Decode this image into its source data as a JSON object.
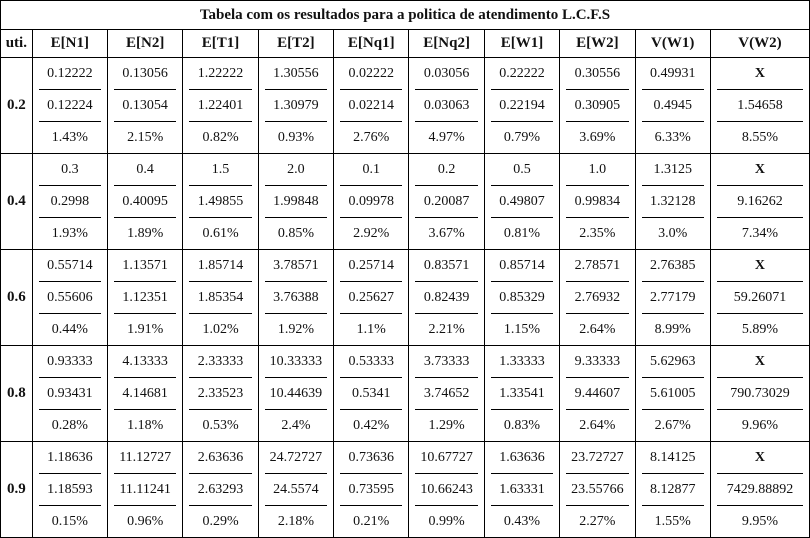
{
  "title": "Tabela com os resultados para a politica de atendimento L.C.F.S",
  "headers": [
    "uti.",
    "E[N1]",
    "E[N2]",
    "E[T1]",
    "E[T2]",
    "E[Nq1]",
    "E[Nq2]",
    "E[W1]",
    "E[W2]",
    "V(W1)",
    "V(W2)"
  ],
  "rows": [
    {
      "util": "0.2",
      "cells": [
        [
          "0.12222",
          "0.12224",
          "1.43%"
        ],
        [
          "0.13056",
          "0.13054",
          "2.15%"
        ],
        [
          "1.22222",
          "1.22401",
          "0.82%"
        ],
        [
          "1.30556",
          "1.30979",
          "0.93%"
        ],
        [
          "0.02222",
          "0.02214",
          "2.76%"
        ],
        [
          "0.03056",
          "0.03063",
          "4.97%"
        ],
        [
          "0.22222",
          "0.22194",
          "0.79%"
        ],
        [
          "0.30556",
          "0.30905",
          "3.69%"
        ],
        [
          "0.49931",
          "0.4945",
          "6.33%"
        ],
        [
          "X",
          "1.54658",
          "8.55%"
        ]
      ]
    },
    {
      "util": "0.4",
      "cells": [
        [
          "0.3",
          "0.2998",
          "1.93%"
        ],
        [
          "0.4",
          "0.40095",
          "1.89%"
        ],
        [
          "1.5",
          "1.49855",
          "0.61%"
        ],
        [
          "2.0",
          "1.99848",
          "0.85%"
        ],
        [
          "0.1",
          "0.09978",
          "2.92%"
        ],
        [
          "0.2",
          "0.20087",
          "3.67%"
        ],
        [
          "0.5",
          "0.49807",
          "0.81%"
        ],
        [
          "1.0",
          "0.99834",
          "2.35%"
        ],
        [
          "1.3125",
          "1.32128",
          "3.0%"
        ],
        [
          "X",
          "9.16262",
          "7.34%"
        ]
      ]
    },
    {
      "util": "0.6",
      "cells": [
        [
          "0.55714",
          "0.55606",
          "0.44%"
        ],
        [
          "1.13571",
          "1.12351",
          "1.91%"
        ],
        [
          "1.85714",
          "1.85354",
          "1.02%"
        ],
        [
          "3.78571",
          "3.76388",
          "1.92%"
        ],
        [
          "0.25714",
          "0.25627",
          "1.1%"
        ],
        [
          "0.83571",
          "0.82439",
          "2.21%"
        ],
        [
          "0.85714",
          "0.85329",
          "1.15%"
        ],
        [
          "2.78571",
          "2.76932",
          "2.64%"
        ],
        [
          "2.76385",
          "2.77179",
          "8.99%"
        ],
        [
          "X",
          "59.26071",
          "5.89%"
        ]
      ]
    },
    {
      "util": "0.8",
      "cells": [
        [
          "0.93333",
          "0.93431",
          "0.28%"
        ],
        [
          "4.13333",
          "4.14681",
          "1.18%"
        ],
        [
          "2.33333",
          "2.33523",
          "0.53%"
        ],
        [
          "10.33333",
          "10.44639",
          "2.4%"
        ],
        [
          "0.53333",
          "0.5341",
          "0.42%"
        ],
        [
          "3.73333",
          "3.74652",
          "1.29%"
        ],
        [
          "1.33333",
          "1.33541",
          "0.83%"
        ],
        [
          "9.33333",
          "9.44607",
          "2.64%"
        ],
        [
          "5.62963",
          "5.61005",
          "2.67%"
        ],
        [
          "X",
          "790.73029",
          "9.96%"
        ]
      ]
    },
    {
      "util": "0.9",
      "cells": [
        [
          "1.18636",
          "1.18593",
          "0.15%"
        ],
        [
          "11.12727",
          "11.11241",
          "0.96%"
        ],
        [
          "2.63636",
          "2.63293",
          "0.29%"
        ],
        [
          "24.72727",
          "24.5574",
          "2.18%"
        ],
        [
          "0.73636",
          "0.73595",
          "0.21%"
        ],
        [
          "10.67727",
          "10.66243",
          "0.99%"
        ],
        [
          "1.63636",
          "1.63331",
          "0.43%"
        ],
        [
          "23.72727",
          "23.55766",
          "2.27%"
        ],
        [
          "8.14125",
          "8.12877",
          "1.55%"
        ],
        [
          "X",
          "7429.88892",
          "9.95%"
        ]
      ]
    }
  ]
}
